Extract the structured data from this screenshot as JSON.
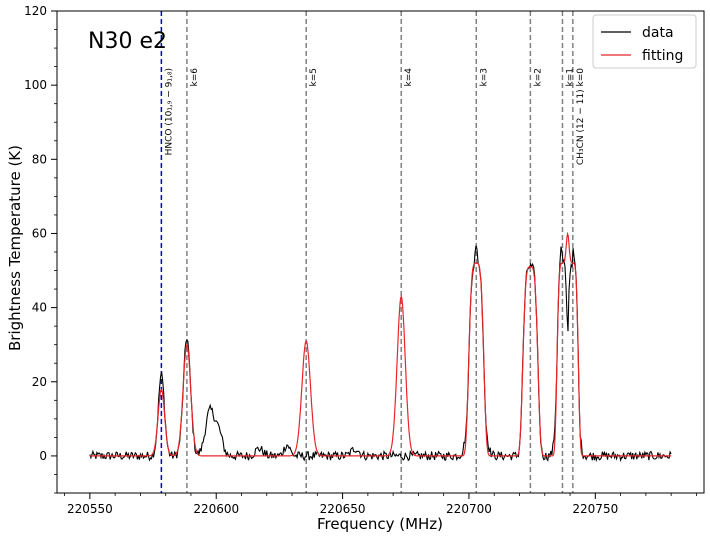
{
  "chart_data": {
    "type": "line",
    "title": "N30 e2",
    "xlabel": "Frequency (MHz)",
    "ylabel": "Brightness Temperature (K)",
    "xlim": [
      220537,
      220793
    ],
    "ylim": [
      -10,
      120
    ],
    "xticks": [
      220550,
      220600,
      220650,
      220700,
      220750
    ],
    "yticks": [
      0,
      20,
      40,
      60,
      80,
      100,
      120
    ],
    "x_minor_step": 10,
    "y_minor_step": 5,
    "legend": {
      "position": "top-right"
    },
    "series": [
      {
        "name": "data",
        "color": "#000000"
      },
      {
        "name": "fitting",
        "color": "#e8262a"
      }
    ],
    "lines": [
      {
        "name": "HNCO",
        "label": "HNCO (10₁,₉ − 9₁,₈)",
        "x": 220578.3,
        "color": "#0000cc"
      },
      {
        "name": "k=6",
        "label": "k=6",
        "x": 220588.4,
        "color": "#808080"
      },
      {
        "name": "k=5",
        "label": "k=5",
        "x": 220635.6,
        "color": "#808080"
      },
      {
        "name": "k=4",
        "label": "k=4",
        "x": 220673.2,
        "color": "#808080"
      },
      {
        "name": "k=3",
        "label": "k=3",
        "x": 220702.9,
        "color": "#808080"
      },
      {
        "name": "k=2",
        "label": "k=2",
        "x": 220724.3,
        "color": "#808080"
      },
      {
        "name": "k=1",
        "label": "k=1",
        "x": 220737.0,
        "color": "#808080"
      },
      {
        "name": "k=0",
        "label": "CH₃CN (12 − 11)  k=0",
        "x": 220741.1,
        "color": "#808080"
      }
    ],
    "data_x_range": [
      220550,
      220780
    ],
    "peaks_fit": [
      {
        "x": 220578.3,
        "amp": 18,
        "sigma": 1.3,
        "top": "gauss"
      },
      {
        "x": 220588.4,
        "amp": 30,
        "sigma": 1.5,
        "top": "gauss"
      },
      {
        "x": 220635.6,
        "amp": 31,
        "sigma": 1.7,
        "top": "gauss"
      },
      {
        "x": 220673.2,
        "amp": 43,
        "sigma": 1.6,
        "top": "gauss"
      },
      {
        "x": 220702.9,
        "amp": 52,
        "sigma": 2.2,
        "top": "flat"
      },
      {
        "x": 220724.3,
        "amp": 51,
        "sigma": 2.2,
        "top": "flat"
      },
      {
        "x": 220737.0,
        "amp": 52,
        "sigma": 1.6,
        "top": "flat"
      },
      {
        "x": 220741.1,
        "amp": 52,
        "sigma": 1.6,
        "top": "flat"
      }
    ],
    "extra_data_features": [
      {
        "x": 220578.3,
        "amp": 22,
        "sigma": 1.2
      },
      {
        "x": 220588.4,
        "amp": 32,
        "sigma": 1.4
      },
      {
        "x": 220597.5,
        "amp": 12,
        "sigma": 1.8
      },
      {
        "x": 220601.0,
        "amp": 6,
        "sigma": 1.5
      },
      {
        "x": 220617.0,
        "amp": 2,
        "sigma": 1.5
      },
      {
        "x": 220628.0,
        "amp": 3,
        "sigma": 1.2
      },
      {
        "x": 220655.0,
        "amp": 2,
        "sigma": 1.5
      },
      {
        "x": 220702.9,
        "amp": 56,
        "sigma": 2.0
      },
      {
        "x": 220736.5,
        "amp": 56,
        "sigma": 1.3
      },
      {
        "x": 220741.3,
        "amp": 55,
        "sigma": 1.3
      }
    ],
    "noise_amplitude": 1.2
  }
}
